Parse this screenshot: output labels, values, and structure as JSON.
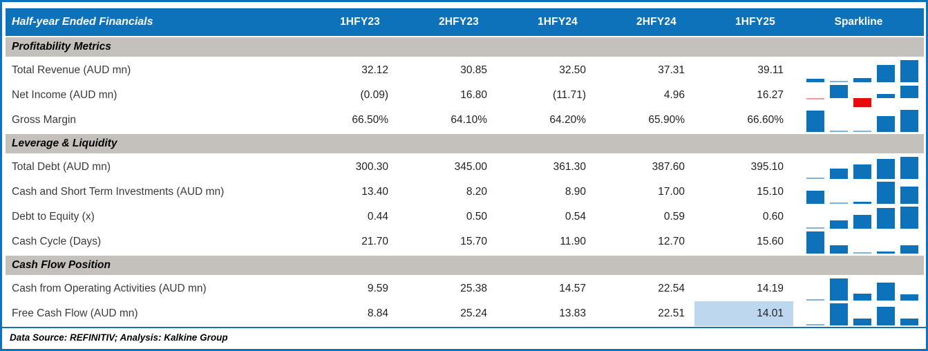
{
  "colors": {
    "header_blue": "#0d72b9",
    "section_gray": "#c4c1bc",
    "spark_blue": "#0d72b9",
    "spark_red": "#e90a0c",
    "highlight_cell": "#bdd7ee"
  },
  "table": {
    "header": {
      "label": "Half-year Ended Financials",
      "columns": [
        "1HFY23",
        "2HFY23",
        "1HFY24",
        "2HFY24",
        "1HFY25"
      ],
      "sparkline_label": "Sparkline"
    },
    "sections": [
      {
        "title": "Profitability Metrics",
        "rows": [
          {
            "label": "Total Revenue (AUD mn)",
            "display": [
              "32.12",
              "30.85",
              "32.50",
              "37.31",
              "39.11"
            ],
            "values": [
              32.12,
              30.85,
              32.5,
              37.31,
              39.11
            ]
          },
          {
            "label": "Net Income (AUD mn)",
            "display": [
              "(0.09)",
              "16.80",
              "(11.71)",
              "4.96",
              "16.27"
            ],
            "values": [
              -0.09,
              16.8,
              -11.71,
              4.96,
              16.27
            ]
          },
          {
            "label": "Gross Margin",
            "display": [
              "66.50%",
              "64.10%",
              "64.20%",
              "65.90%",
              "66.60%"
            ],
            "values": [
              66.5,
              64.1,
              64.2,
              65.9,
              66.6
            ]
          }
        ]
      },
      {
        "title": "Leverage & Liquidity",
        "rows": [
          {
            "label": "Total Debt (AUD mn)",
            "display": [
              "300.30",
              "345.00",
              "361.30",
              "387.60",
              "395.10"
            ],
            "values": [
              300.3,
              345.0,
              361.3,
              387.6,
              395.1
            ]
          },
          {
            "label": "Cash and Short Term Investments (AUD mn)",
            "display": [
              "13.40",
              "8.20",
              "8.90",
              "17.00",
              "15.10"
            ],
            "values": [
              13.4,
              8.2,
              8.9,
              17.0,
              15.1
            ]
          },
          {
            "label": "Debt to Equity (x)",
            "display": [
              "0.44",
              "0.50",
              "0.54",
              "0.59",
              "0.60"
            ],
            "values": [
              0.44,
              0.5,
              0.54,
              0.59,
              0.6
            ]
          },
          {
            "label": "Cash Cycle (Days)",
            "display": [
              "21.70",
              "15.70",
              "11.90",
              "12.70",
              "15.60"
            ],
            "values": [
              21.7,
              15.7,
              11.9,
              12.7,
              15.6
            ]
          }
        ]
      },
      {
        "title": "Cash Flow Position",
        "rows": [
          {
            "label": "Cash from Operating Activities (AUD mn)",
            "display": [
              "9.59",
              "25.38",
              "14.57",
              "22.54",
              "14.19"
            ],
            "values": [
              9.59,
              25.38,
              14.57,
              22.54,
              14.19
            ]
          },
          {
            "label": "Free Cash Flow (AUD mn)",
            "display": [
              "8.84",
              "25.24",
              "13.83",
              "22.51",
              "14.01"
            ],
            "values": [
              8.84,
              25.24,
              13.83,
              22.51,
              14.01
            ],
            "highlight": 4
          }
        ]
      }
    ],
    "footer": "Data Source: REFINITIV; Analysis: Kalkine Group"
  },
  "chart_data": {
    "type": "table",
    "title": "Half-year Ended Financials",
    "columns": [
      "Half-year Ended Financials",
      "1HFY23",
      "2HFY23",
      "1HFY24",
      "2HFY24",
      "1HFY25",
      "Sparkline"
    ],
    "rows": [
      {
        "section": "Profitability Metrics",
        "label": "Total Revenue (AUD mn)",
        "values": [
          32.12,
          30.85,
          32.5,
          37.31,
          39.11
        ]
      },
      {
        "section": "Profitability Metrics",
        "label": "Net Income (AUD mn)",
        "values": [
          -0.09,
          16.8,
          -11.71,
          4.96,
          16.27
        ]
      },
      {
        "section": "Profitability Metrics",
        "label": "Gross Margin",
        "values_pct": [
          66.5,
          64.1,
          64.2,
          65.9,
          66.6
        ]
      },
      {
        "section": "Leverage & Liquidity",
        "label": "Total Debt (AUD mn)",
        "values": [
          300.3,
          345.0,
          361.3,
          387.6,
          395.1
        ]
      },
      {
        "section": "Leverage & Liquidity",
        "label": "Cash and Short Term Investments (AUD mn)",
        "values": [
          13.4,
          8.2,
          8.9,
          17.0,
          15.1
        ]
      },
      {
        "section": "Leverage & Liquidity",
        "label": "Debt to Equity (x)",
        "values": [
          0.44,
          0.5,
          0.54,
          0.59,
          0.6
        ]
      },
      {
        "section": "Leverage & Liquidity",
        "label": "Cash Cycle (Days)",
        "values": [
          21.7,
          15.7,
          11.9,
          12.7,
          15.6
        ]
      },
      {
        "section": "Cash Flow Position",
        "label": "Cash from Operating Activities (AUD mn)",
        "values": [
          9.59,
          25.38,
          14.57,
          22.54,
          14.19
        ]
      },
      {
        "section": "Cash Flow Position",
        "label": "Free Cash Flow (AUD mn)",
        "values": [
          8.84,
          25.24,
          13.83,
          22.51,
          14.01
        ],
        "highlighted_column": "1HFY25"
      }
    ],
    "sparkline": {
      "type": "bar",
      "per_row": true,
      "positive_color": "#0d72b9",
      "negative_color": "#e90a0c",
      "scaling": "min-to-max per row, negatives below zero baseline"
    },
    "notes": "Data Source: REFINITIV; Analysis: Kalkine Group"
  }
}
